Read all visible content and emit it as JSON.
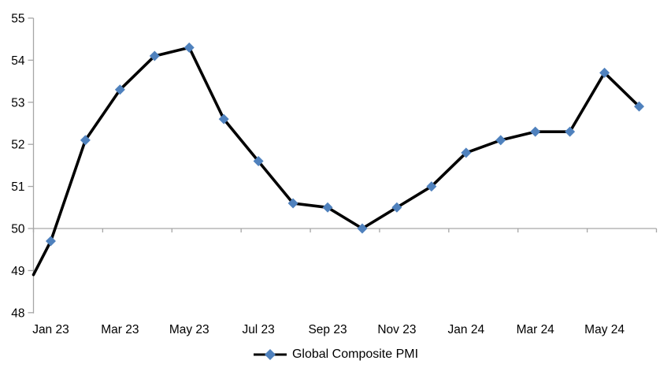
{
  "chart_data": {
    "type": "line",
    "title": "",
    "legend_label": "Global Composite PMI",
    "legend_position": "bottom-center",
    "categories": [
      "Jan 23",
      "Feb 23",
      "Mar 23",
      "Apr 23",
      "May 23",
      "Jun 23",
      "Jul 23",
      "Aug 23",
      "Sep 23",
      "Oct 23",
      "Nov 23",
      "Dec 23",
      "Jan 24",
      "Feb 24",
      "Mar 24",
      "Apr 24",
      "May 24",
      "Jun 24"
    ],
    "values": [
      49.7,
      52.1,
      53.3,
      54.1,
      54.3,
      52.6,
      51.6,
      50.6,
      50.5,
      50.0,
      50.5,
      51.0,
      51.8,
      52.1,
      52.3,
      52.3,
      53.7,
      52.9
    ],
    "line_enters_left_edge_at": 48.9,
    "xlabel": "",
    "ylabel": "",
    "ylim": [
      48,
      55
    ],
    "ytick_step": 1,
    "ytick_labels": [
      "48",
      "49",
      "50",
      "51",
      "52",
      "53",
      "54",
      "55"
    ],
    "xtick_labels_shown": [
      "Jan 23",
      "Mar 23",
      "May 23",
      "Jul 23",
      "Sep 23",
      "Nov 23",
      "Jan 24",
      "Mar 24",
      "May 24"
    ],
    "xtick_label_every": 2,
    "category_axis_crosses_at": 50,
    "gridlines": "none",
    "marker": "diamond",
    "colors": {
      "line": "#000000",
      "marker": "#4F81BD",
      "axis": "#A6A6A6",
      "text": "#000000",
      "background": "#FFFFFF"
    }
  }
}
